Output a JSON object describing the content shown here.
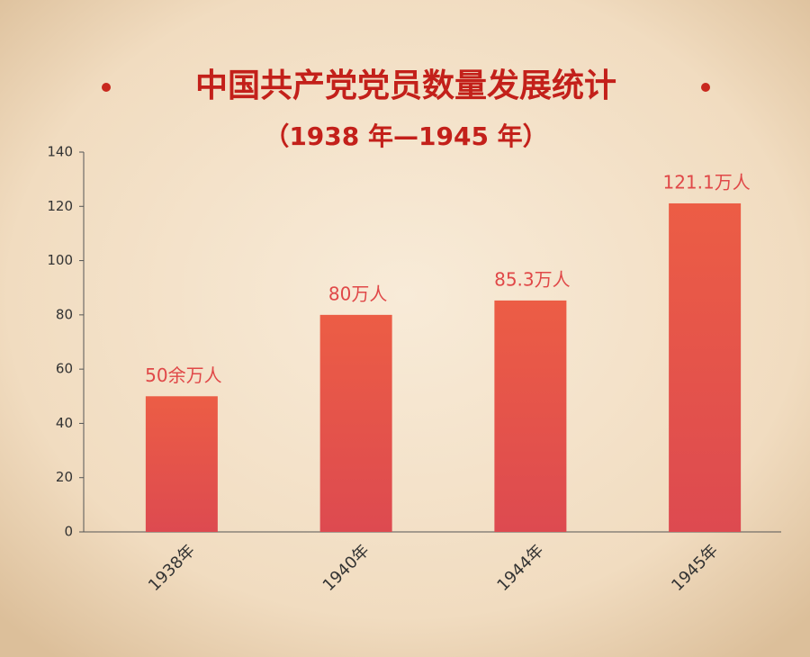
{
  "chart_data": {
    "type": "bar",
    "title": "中国共产党党员数量发展统计",
    "subtitle": "（1938 年—1945 年）",
    "categories": [
      "1938年",
      "1940年",
      "1944年",
      "1945年"
    ],
    "values": [
      50,
      80,
      85.3,
      121.1
    ],
    "value_labels": [
      "50余万人",
      "80万人",
      "85.3万人",
      "121.1万人"
    ],
    "color": "#e4514a",
    "ylim": [
      0,
      140
    ],
    "yticks": [
      0,
      20,
      40,
      60,
      80,
      100,
      120,
      140
    ],
    "grid": false
  }
}
